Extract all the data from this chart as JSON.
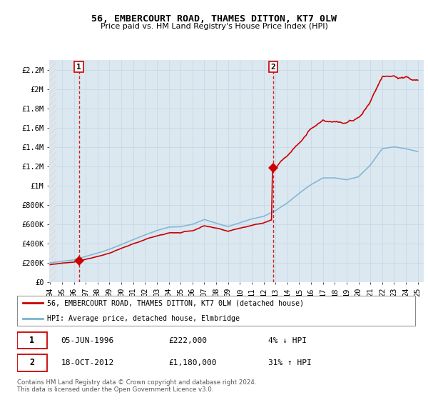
{
  "title": "56, EMBERCOURT ROAD, THAMES DITTON, KT7 0LW",
  "subtitle": "Price paid vs. HM Land Registry's House Price Index (HPI)",
  "legend_line1": "56, EMBERCOURT ROAD, THAMES DITTON, KT7 0LW (detached house)",
  "legend_line2": "HPI: Average price, detached house, Elmbridge",
  "annotation1_date": "05-JUN-1996",
  "annotation1_price": "£222,000",
  "annotation1_hpi": "4% ↓ HPI",
  "annotation2_date": "18-OCT-2012",
  "annotation2_price": "£1,180,000",
  "annotation2_hpi": "31% ↑ HPI",
  "footer": "Contains HM Land Registry data © Crown copyright and database right 2024.\nThis data is licensed under the Open Government Licence v3.0.",
  "ylim": [
    0,
    2300000
  ],
  "yticks": [
    0,
    200000,
    400000,
    600000,
    800000,
    1000000,
    1200000,
    1400000,
    1600000,
    1800000,
    2000000,
    2200000
  ],
  "ytick_labels": [
    "£0",
    "£200K",
    "£400K",
    "£600K",
    "£800K",
    "£1M",
    "£1.2M",
    "£1.4M",
    "£1.6M",
    "£1.8M",
    "£2M",
    "£2.2M"
  ],
  "sale1_x": 1996.42,
  "sale1_y": 222000,
  "sale2_x": 2012.79,
  "sale2_y": 1180000,
  "hpi_color": "#7ab3d4",
  "price_color": "#cc0000",
  "vline_color": "#cc0000",
  "grid_color": "#c8d8e8",
  "bg_color": "#dce8f0",
  "hatch_color": "#c0ccdc",
  "xmin": 1993.92,
  "xmax": 2025.5,
  "hatch_end": 1994.5
}
